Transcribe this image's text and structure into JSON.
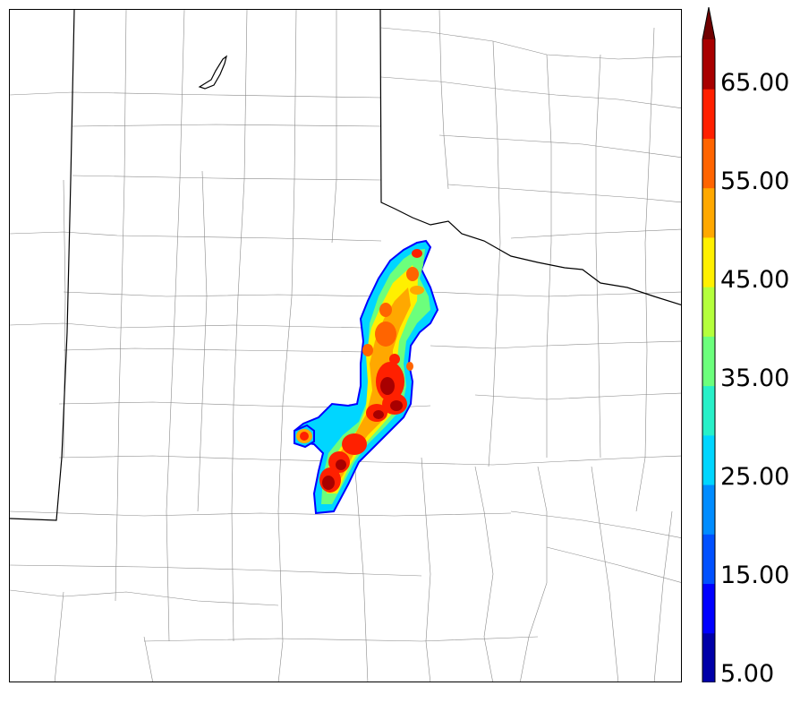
{
  "map": {
    "colorbar": {
      "tick_labels": [
        "5.00",
        "15.00",
        "25.00",
        "35.00",
        "45.00",
        "55.00",
        "65.00"
      ],
      "colors": [
        "#0000a8",
        "#0000ff",
        "#0050ff",
        "#008cff",
        "#00d6ff",
        "#28f0c8",
        "#6cff7c",
        "#b4ff3c",
        "#fff000",
        "#ffa800",
        "#ff6400",
        "#ff2000",
        "#a80000",
        "#700000"
      ],
      "extend": "max"
    }
  }
}
